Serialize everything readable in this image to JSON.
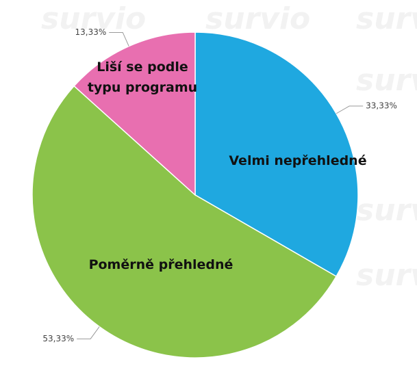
{
  "watermark": "survio",
  "chart_data": {
    "type": "pie",
    "categories": [
      "Velmi nepřehledné",
      "Poměrně přehledné",
      "Liší se podle typu programu"
    ],
    "values": [
      33.33,
      53.33,
      13.33
    ],
    "value_labels": [
      "33,33%",
      "53,33%",
      "13,33%"
    ],
    "colors": [
      "#1fa8e0",
      "#8bc34a",
      "#e86fb0"
    ]
  }
}
